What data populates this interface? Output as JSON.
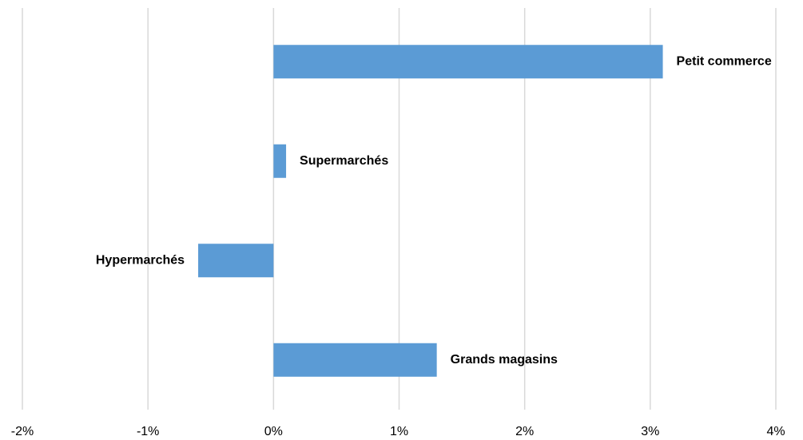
{
  "chart_data": {
    "type": "bar",
    "orientation": "horizontal",
    "categories": [
      "Petit commerce",
      "Supermarchés",
      "Hypermarchés",
      "Grands magasins"
    ],
    "values": [
      3.1,
      0.1,
      -0.6,
      1.3
    ],
    "color": "#5b9bd5",
    "xlim": [
      -2,
      4
    ],
    "xticks": [
      {
        "value": -2,
        "label": "-2%"
      },
      {
        "value": -1,
        "label": "-1%"
      },
      {
        "value": 0,
        "label": "0%"
      },
      {
        "value": 1,
        "label": "1%"
      },
      {
        "value": 2,
        "label": "2%"
      },
      {
        "value": 3,
        "label": "3%"
      },
      {
        "value": 4,
        "label": "4%"
      }
    ],
    "grid": true
  }
}
